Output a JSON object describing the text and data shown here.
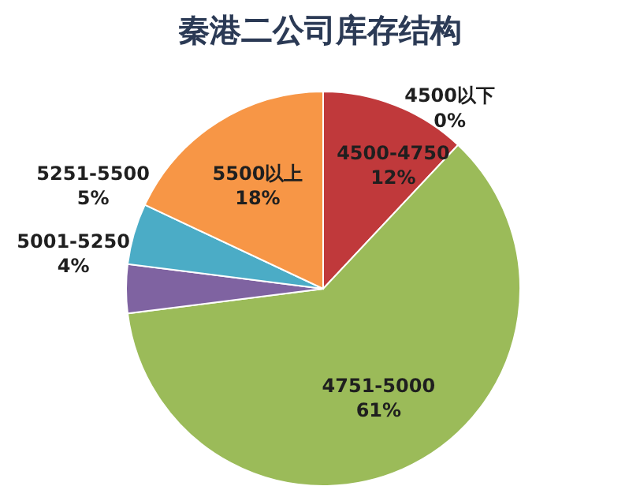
{
  "chart_data": {
    "type": "pie",
    "title": "秦港二公司库存结构",
    "categories": [
      "4500以下",
      "4500-4750",
      "4751-5000",
      "5001-5250",
      "5251-5500",
      "5500以上"
    ],
    "values": [
      0,
      12,
      61,
      4,
      5,
      18
    ],
    "colors": [
      "#c0504d",
      "#c0393b",
      "#9bbb59",
      "#7f63a1",
      "#4bacc6",
      "#f79646"
    ],
    "value_labels": [
      "0%",
      "12%",
      "61%",
      "4%",
      "5%",
      "18%"
    ]
  }
}
